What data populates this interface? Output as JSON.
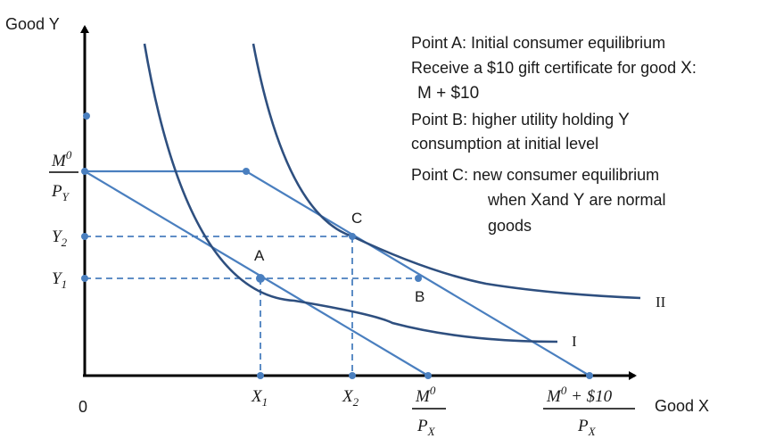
{
  "axes": {
    "y_label": "Good Y",
    "x_label": "Good X",
    "origin_label": "0"
  },
  "y_ticks": {
    "intercept_num": "M",
    "intercept_sup": "0",
    "intercept_den": "P",
    "intercept_den_sub": "Y",
    "y2": "Y",
    "y2_sub": "2",
    "y1": "Y",
    "y1_sub": "1"
  },
  "x_ticks": {
    "x1": "X",
    "x1_sub": "1",
    "x2": "X",
    "x2_sub": "2",
    "m0_num": "M",
    "m0_sup": "0",
    "m0_den": "P",
    "m0_den_sub": "X",
    "m10_num_m": "M",
    "m10_num_sup": "0",
    "m10_num_rest": " + $10",
    "m10_den": "P",
    "m10_den_sub": "X"
  },
  "points": {
    "a": "A",
    "b": "B",
    "c": "C"
  },
  "curves": {
    "i": "I",
    "ii": "II"
  },
  "notes": {
    "a_line": "Point A: Initial consumer equilibrium",
    "gift_prefix": "Receive a $10 gift certificate for good ",
    "gift_var": "X",
    "gift_suffix": ":",
    "income_m": "M",
    "income_rest": " + $10",
    "b_prefix": "Point B: higher utility holding ",
    "b_var": "Y",
    "b_line2": "consumption at initial level",
    "c_line1": "Point C: new consumer equilibrium",
    "c_when": "when ",
    "c_x": "X",
    "c_and": "and ",
    "c_y": "Y",
    "c_rest": " are normal",
    "c_line3": "goods"
  },
  "colors": {
    "axis": "#000000",
    "indifference_curve": "#2e4f7f",
    "budget_line": "#4a7fbf",
    "guide_line": "#4a7fbf",
    "point": "#4a7fbf"
  }
}
